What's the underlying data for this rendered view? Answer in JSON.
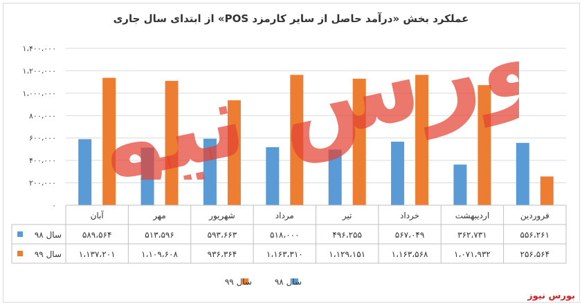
{
  "chart_data": {
    "type": "bar",
    "title": "عملکرد بخش «درآمد حاصل از سایر کارمزد POS» از ابتدای سال جاری",
    "categories": [
      "فروردین",
      "اردیبهشت",
      "خرداد",
      "تیر",
      "مرداد",
      "شهریور",
      "مهر",
      "آبان"
    ],
    "series": [
      {
        "name": "سال ۹۸",
        "color": "#5b9bd5",
        "values": [
          556261,
          362731,
          567049,
          496255,
          518000,
          593663,
          513596,
          589564
        ],
        "labels": [
          "۵۵۶،۲۶۱",
          "۳۶۲،۷۳۱",
          "۵۶۷،۰۴۹",
          "۴۹۶،۲۵۵",
          "۵۱۸،۰۰۰",
          "۵۹۳،۶۶۳",
          "۵۱۳،۵۹۶",
          "۵۸۹،۵۶۴"
        ]
      },
      {
        "name": "سال ۹۹",
        "color": "#ed7d31",
        "values": [
          256564,
          1071932,
          1163568,
          1129151,
          1163310,
          936364,
          1109608,
          1137201
        ],
        "labels": [
          "۲۵۶،۵۶۴",
          "۱،۰۷۱،۹۳۲",
          "۱،۱۶۳،۵۶۸",
          "۱،۱۲۹،۱۵۱",
          "۱،۱۶۳،۳۱۰",
          "۹۳۶،۳۶۴",
          "۱،۱۰۹،۶۰۸",
          "۱،۱۳۷،۲۰۱"
        ]
      }
    ],
    "ylim": [
      0,
      1400000
    ],
    "yticks": [
      0,
      200000,
      400000,
      600000,
      800000,
      1000000,
      1200000,
      1400000
    ],
    "ytick_labels": [
      "۰",
      "۲۰۰،۰۰۰",
      "۴۰۰،۰۰۰",
      "۶۰۰،۰۰۰",
      "۸۰۰،۰۰۰",
      "۱،۰۰۰،۰۰۰",
      "۱،۲۰۰،۰۰۰",
      "۱،۴۰۰،۰۰۰"
    ],
    "grid": true,
    "legend": "bottom-center",
    "data_table": true,
    "category_order": "right-to-left"
  },
  "watermark_text": "بورس نیوز",
  "source_label": "بورس نیوز"
}
